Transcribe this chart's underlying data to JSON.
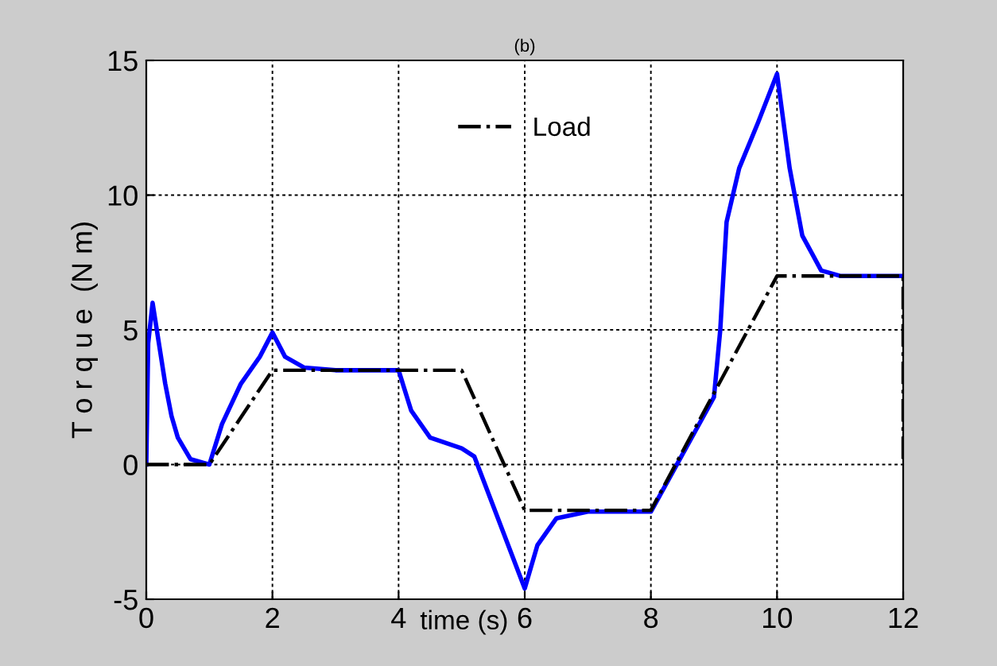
{
  "chart_data": {
    "type": "line",
    "title": "(b)",
    "xlabel": "time (s)",
    "ylabel": "T o r q u e  (N m)",
    "xlim": [
      0,
      12
    ],
    "ylim": [
      -5,
      15
    ],
    "xticks": [
      0,
      2,
      4,
      6,
      8,
      10,
      12
    ],
    "yticks": [
      -5,
      0,
      5,
      10,
      15
    ],
    "grid": true,
    "legend": "top",
    "series": [
      {
        "color": "#0000ff",
        "line_style": "solid",
        "x": [
          0,
          0.03,
          0.1,
          0.2,
          0.3,
          0.4,
          0.5,
          0.7,
          1.0,
          1.2,
          1.5,
          1.8,
          2.0,
          2.2,
          2.5,
          3.0,
          4.0,
          4.2,
          4.5,
          5.0,
          5.2,
          6.0,
          6.2,
          6.5,
          7.0,
          8.0,
          9.0,
          9.1,
          9.2,
          9.4,
          9.7,
          10.0,
          10.2,
          10.4,
          10.7,
          11.0,
          12.0
        ],
        "values": [
          0,
          4.5,
          6,
          4.5,
          3,
          1.8,
          1,
          0.2,
          0,
          1.5,
          3,
          4,
          4.9,
          4,
          3.6,
          3.5,
          3.5,
          2,
          1,
          0.6,
          0.3,
          -4.6,
          -3,
          -2,
          -1.75,
          -1.75,
          2.5,
          5,
          9,
          11,
          12.7,
          14.5,
          11,
          8.5,
          7.2,
          7,
          7
        ]
      },
      {
        "name": "Load",
        "color": "#000000",
        "line_style": "dashdot",
        "x": [
          0,
          1,
          2,
          5,
          6,
          8,
          10,
          12,
          12
        ],
        "values": [
          0,
          0,
          3.5,
          3.5,
          -1.7,
          -1.7,
          7,
          7,
          0
        ]
      }
    ]
  }
}
